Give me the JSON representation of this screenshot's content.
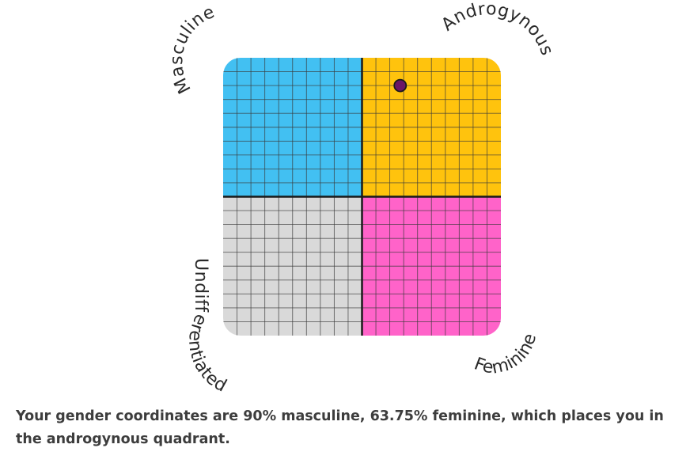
{
  "chart_data": {
    "type": "scatter",
    "quadrants": [
      {
        "label": "Masculine",
        "position": "top-left",
        "color": "#42c0f2"
      },
      {
        "label": "Androgynous",
        "position": "top-right",
        "color": "#ffc30d"
      },
      {
        "label": "Undifferentiated",
        "position": "bottom-left",
        "color": "#d9d9d9"
      },
      {
        "label": "Feminine",
        "position": "bottom-right",
        "color": "#ff63c9"
      }
    ],
    "points": [
      {
        "masculine": 90,
        "feminine": 63.75,
        "color": "#6a1466"
      }
    ],
    "grid": true
  },
  "result": {
    "text": "Your gender coordinates are 90% masculine, 63.75% feminine, which places you in the androgynous quadrant."
  }
}
